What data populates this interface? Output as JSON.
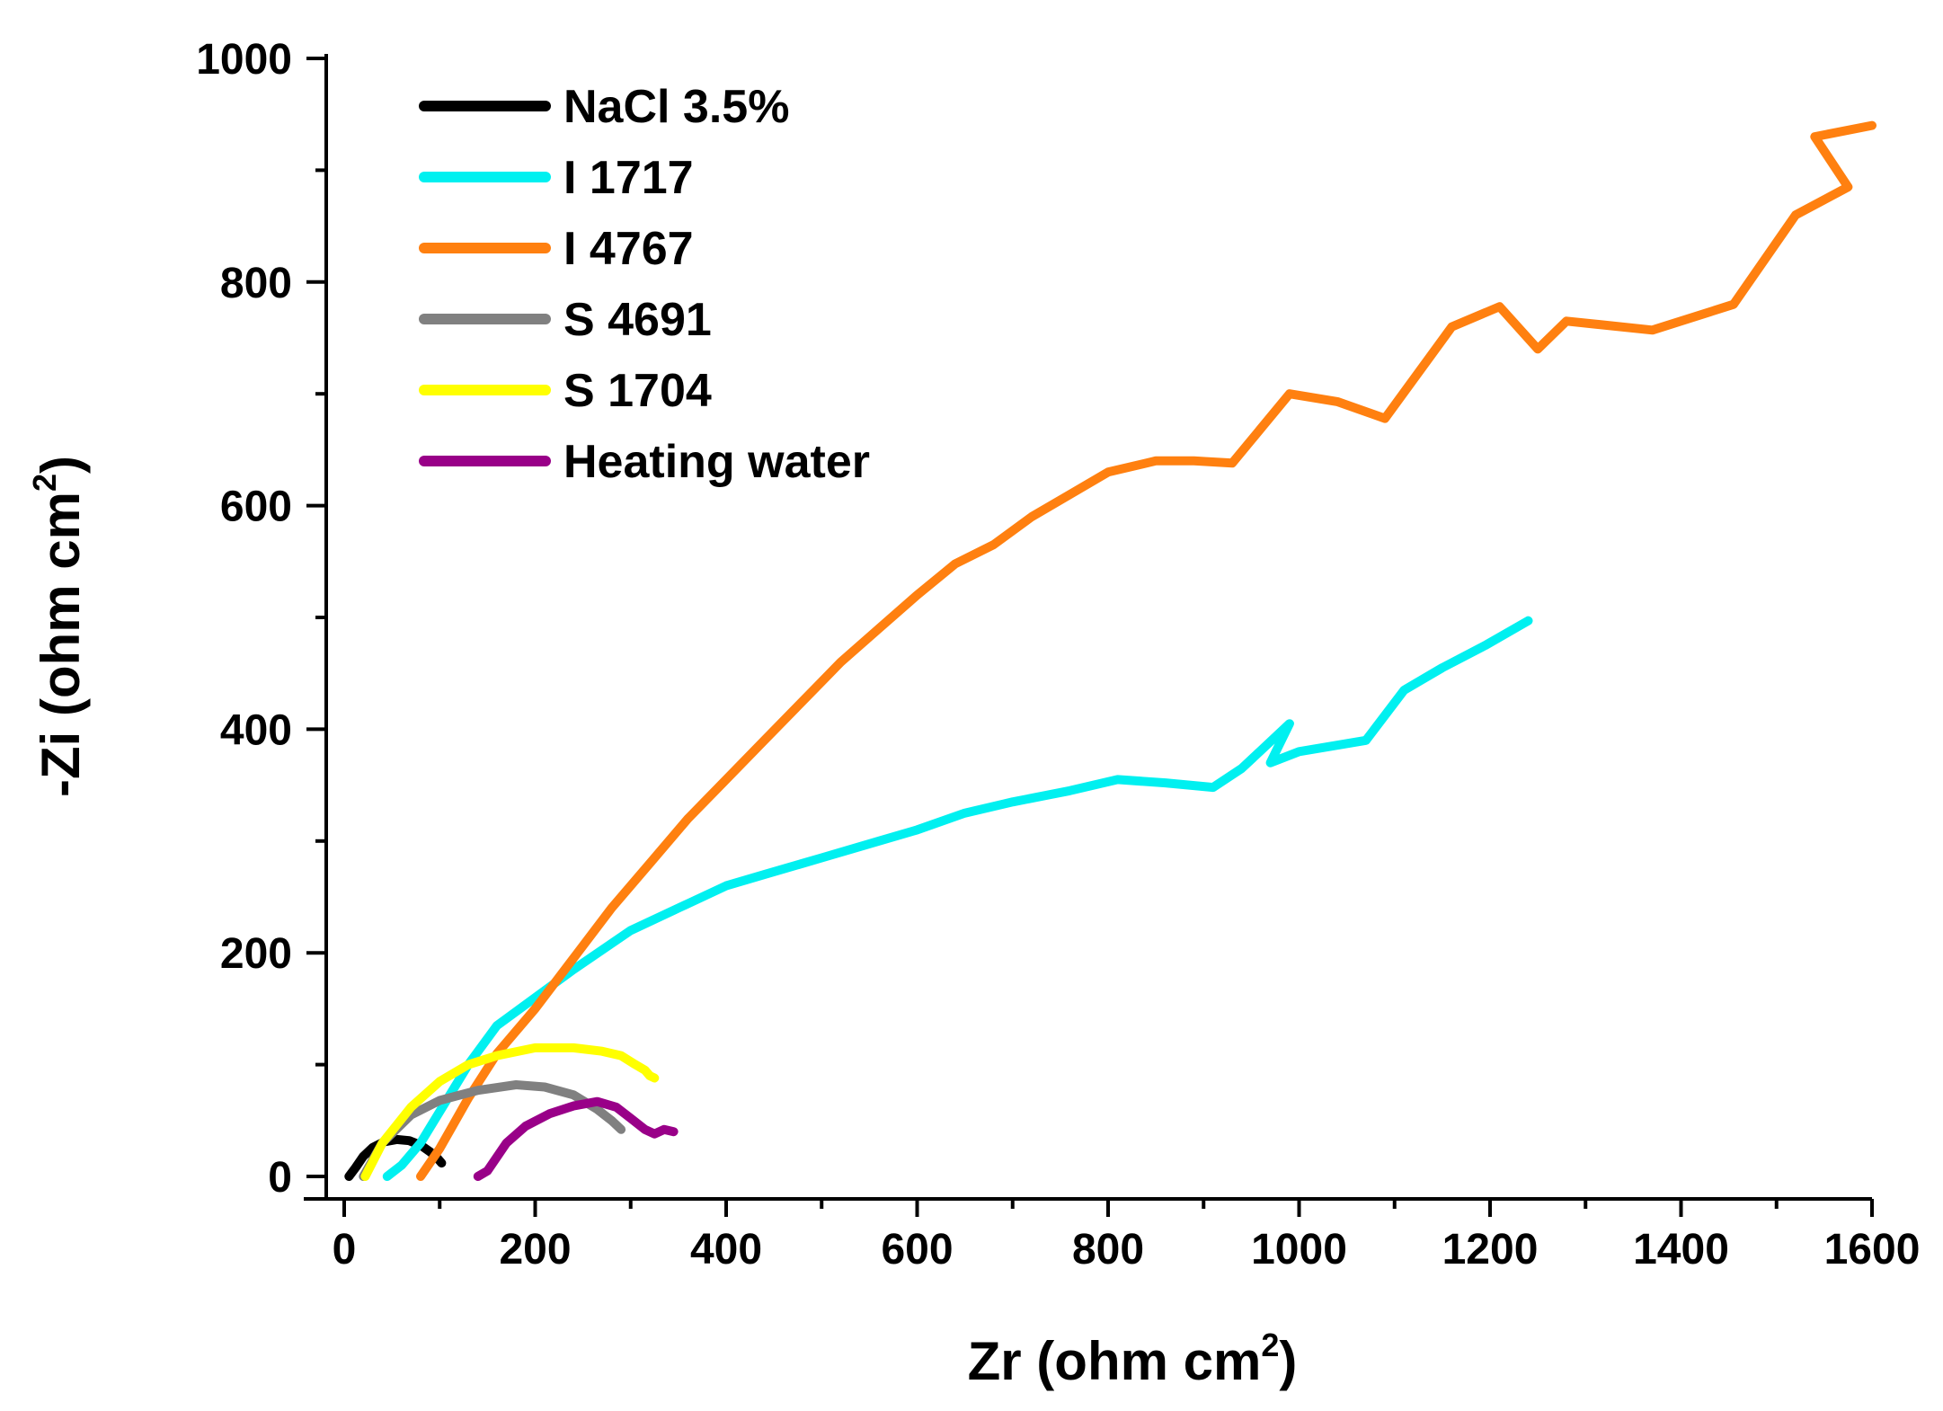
{
  "chart_data": {
    "type": "line",
    "xlabel": "Zr (ohm cm",
    "xlabel_sup": "2",
    "xlabel_end": ")",
    "ylabel": "-Zi (ohm cm",
    "ylabel_sup": "2",
    "ylabel_end": ")",
    "xlim": [
      0,
      1600
    ],
    "ylim": [
      0,
      1000
    ],
    "xticks": [
      0,
      200,
      400,
      600,
      800,
      1000,
      1200,
      1400,
      1600
    ],
    "yticks": [
      0,
      200,
      400,
      600,
      800,
      1000
    ],
    "legend_position": "top-left",
    "series": [
      {
        "name": "NaCl 3.5%",
        "color": "#000000",
        "points": [
          [
            5,
            0
          ],
          [
            12,
            8
          ],
          [
            20,
            18
          ],
          [
            30,
            26
          ],
          [
            42,
            31
          ],
          [
            55,
            33
          ],
          [
            68,
            32
          ],
          [
            80,
            28
          ],
          [
            90,
            22
          ],
          [
            98,
            16
          ],
          [
            102,
            12
          ]
        ]
      },
      {
        "name": "I 1717",
        "color": "#00f0f0",
        "points": [
          [
            45,
            0
          ],
          [
            60,
            10
          ],
          [
            80,
            30
          ],
          [
            105,
            65
          ],
          [
            130,
            100
          ],
          [
            160,
            135
          ],
          [
            200,
            160
          ],
          [
            240,
            185
          ],
          [
            300,
            220
          ],
          [
            350,
            240
          ],
          [
            400,
            260
          ],
          [
            440,
            270
          ],
          [
            500,
            285
          ],
          [
            560,
            300
          ],
          [
            600,
            310
          ],
          [
            650,
            325
          ],
          [
            700,
            335
          ],
          [
            760,
            345
          ],
          [
            810,
            355
          ],
          [
            860,
            352
          ],
          [
            910,
            348
          ],
          [
            940,
            365
          ],
          [
            990,
            405
          ],
          [
            970,
            370
          ],
          [
            1000,
            380
          ],
          [
            1070,
            390
          ],
          [
            1110,
            435
          ],
          [
            1150,
            455
          ],
          [
            1195,
            475
          ],
          [
            1240,
            497
          ]
        ]
      },
      {
        "name": "I 4767",
        "color": "#ff8010",
        "points": [
          [
            80,
            0
          ],
          [
            100,
            25
          ],
          [
            130,
            70
          ],
          [
            160,
            110
          ],
          [
            200,
            150
          ],
          [
            240,
            195
          ],
          [
            280,
            240
          ],
          [
            320,
            280
          ],
          [
            360,
            320
          ],
          [
            400,
            355
          ],
          [
            440,
            390
          ],
          [
            480,
            425
          ],
          [
            520,
            460
          ],
          [
            560,
            490
          ],
          [
            600,
            520
          ],
          [
            640,
            548
          ],
          [
            680,
            565
          ],
          [
            720,
            590
          ],
          [
            760,
            610
          ],
          [
            800,
            630
          ],
          [
            850,
            640
          ],
          [
            890,
            640
          ],
          [
            930,
            638
          ],
          [
            990,
            700
          ],
          [
            1040,
            693
          ],
          [
            1090,
            678
          ],
          [
            1160,
            760
          ],
          [
            1210,
            778
          ],
          [
            1250,
            740
          ],
          [
            1280,
            765
          ],
          [
            1370,
            757
          ],
          [
            1455,
            780
          ],
          [
            1520,
            860
          ],
          [
            1575,
            885
          ],
          [
            1540,
            930
          ],
          [
            1600,
            940
          ]
        ]
      },
      {
        "name": "S 4691",
        "color": "#808080",
        "points": [
          [
            20,
            0
          ],
          [
            40,
            30
          ],
          [
            70,
            55
          ],
          [
            100,
            68
          ],
          [
            140,
            77
          ],
          [
            180,
            82
          ],
          [
            210,
            80
          ],
          [
            240,
            73
          ],
          [
            265,
            60
          ],
          [
            280,
            50
          ],
          [
            290,
            42
          ]
        ]
      },
      {
        "name": "S 1704",
        "color": "#ffff00",
        "points": [
          [
            22,
            0
          ],
          [
            40,
            30
          ],
          [
            70,
            62
          ],
          [
            100,
            85
          ],
          [
            130,
            100
          ],
          [
            160,
            108
          ],
          [
            200,
            115
          ],
          [
            240,
            115
          ],
          [
            270,
            112
          ],
          [
            290,
            108
          ],
          [
            305,
            100
          ],
          [
            315,
            95
          ],
          [
            320,
            90
          ],
          [
            325,
            88
          ]
        ]
      },
      {
        "name": "Heating water",
        "color": "#990088",
        "points": [
          [
            140,
            0
          ],
          [
            150,
            5
          ],
          [
            170,
            30
          ],
          [
            190,
            45
          ],
          [
            215,
            56
          ],
          [
            240,
            63
          ],
          [
            265,
            67
          ],
          [
            285,
            62
          ],
          [
            300,
            52
          ],
          [
            315,
            42
          ],
          [
            325,
            38
          ],
          [
            335,
            42
          ],
          [
            345,
            40
          ]
        ]
      }
    ]
  }
}
